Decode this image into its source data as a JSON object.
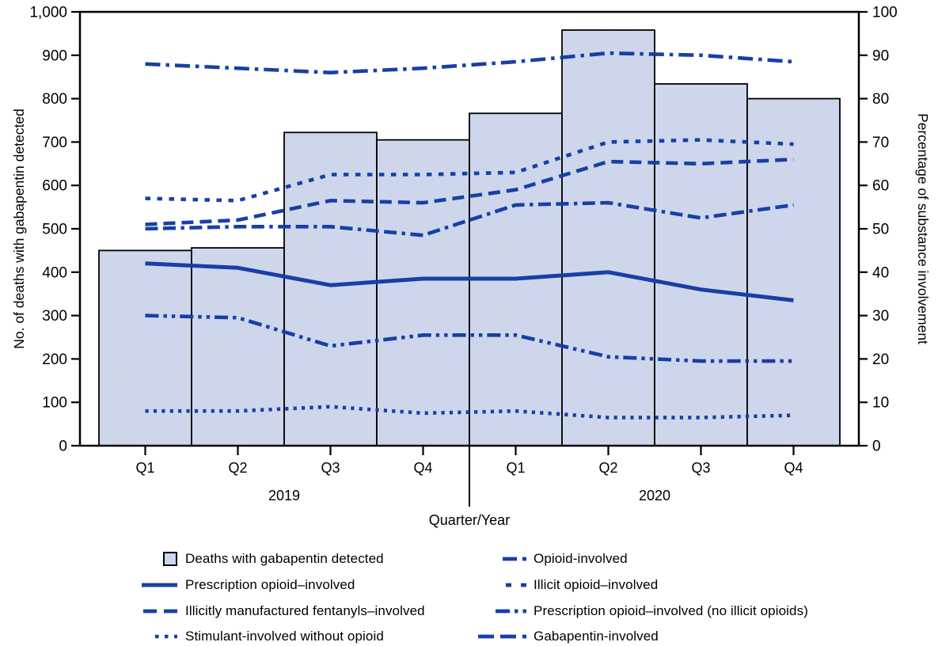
{
  "figure": {
    "left_axis_title": "No. of deaths with gabapentin detected",
    "right_axis_title": "Percentage of substance involvement",
    "x_axis_title": "Quarter/Year",
    "years": [
      "2019",
      "2020"
    ],
    "quarter_labels": [
      "Q1",
      "Q2",
      "Q3",
      "Q4",
      "Q1",
      "Q2",
      "Q3",
      "Q4"
    ],
    "left_ticks": [
      "0",
      "100",
      "200",
      "300",
      "400",
      "500",
      "600",
      "700",
      "800",
      "900",
      "1,000"
    ],
    "right_ticks": [
      "0",
      "10",
      "20",
      "30",
      "40",
      "50",
      "60",
      "70",
      "80",
      "90",
      "100"
    ]
  },
  "colors": {
    "line_blue": "#1740a6",
    "bar_fill": "#cdd6ec",
    "bar_texture_dot": "#d9d6c6",
    "bar_border": "#000000",
    "axis": "#000000"
  },
  "chart_data": {
    "type": "bar+line",
    "categories": [
      "Q1 2019",
      "Q2 2019",
      "Q3 2019",
      "Q4 2019",
      "Q1 2020",
      "Q2 2020",
      "Q3 2020",
      "Q4 2020"
    ],
    "left_axis": {
      "label": "No. of deaths with gabapentin detected",
      "range": [
        0,
        1000
      ],
      "tick_step": 100
    },
    "right_axis": {
      "label": "Percentage of substance involvement",
      "range": [
        0,
        100
      ],
      "tick_step": 10
    },
    "grid": false,
    "legend_position": "bottom",
    "bars": {
      "name": "Deaths with gabapentin detected",
      "axis": "left",
      "values": [
        450,
        456,
        722,
        705,
        766,
        958,
        834,
        800
      ]
    },
    "series": [
      {
        "name": "Stimulant-involved without opioid",
        "style": "dot",
        "axis": "right",
        "values": [
          8,
          8,
          9,
          7.5,
          8,
          6.5,
          6.5,
          7
        ]
      },
      {
        "name": "Prescription opioid–involved (no illicit opioids)",
        "style": "dash-dot-dot",
        "axis": "right",
        "values": [
          30,
          29.5,
          23,
          25.5,
          25.5,
          20.5,
          19.5,
          19.5
        ]
      },
      {
        "name": "Gabapentin-involved",
        "style": "dash-dash-dot",
        "axis": "right",
        "values": [
          50,
          50.5,
          50.5,
          48.5,
          55.5,
          56,
          52.5,
          55.5
        ]
      },
      {
        "name": "Illicitly manufactured fentanyls–involved",
        "style": "long-dash",
        "axis": "right",
        "values": [
          51,
          52,
          56.5,
          56,
          59,
          65.5,
          65,
          66
        ]
      },
      {
        "name": "Illicit opioid–involved",
        "style": "square-dot",
        "axis": "right",
        "values": [
          57,
          56.5,
          62.5,
          62.5,
          63,
          70,
          70.5,
          69.5
        ]
      },
      {
        "name": "Prescription opioid–involved",
        "style": "solid",
        "axis": "right",
        "values": [
          42,
          41,
          37,
          38.5,
          38.5,
          40,
          36,
          33.5
        ]
      },
      {
        "name": "Opioid-involved",
        "style": "dash-dot",
        "axis": "right",
        "values": [
          88,
          87,
          86,
          87,
          88.5,
          90.5,
          90,
          88.5
        ]
      }
    ]
  },
  "legend": {
    "columns": [
      {
        "items": [
          {
            "label": "Deaths with gabapentin detected",
            "marker": "bar-swatch"
          },
          {
            "label": "Prescription opioid–involved",
            "marker": "solid"
          },
          {
            "label": "Illicitly manufactured fentanyls–involved",
            "marker": "long-dash"
          },
          {
            "label": "Stimulant-involved without opioid",
            "marker": "dot"
          }
        ]
      },
      {
        "items": [
          {
            "label": "Opioid-involved",
            "marker": "dash-dot"
          },
          {
            "label": "Illicit opioid–involved",
            "marker": "square-dot"
          },
          {
            "label": "Prescription opioid–involved (no illicit opioids)",
            "marker": "dash-dot-dot"
          },
          {
            "label": "Gabapentin-involved",
            "marker": "dash-dash-dot"
          }
        ]
      }
    ]
  }
}
